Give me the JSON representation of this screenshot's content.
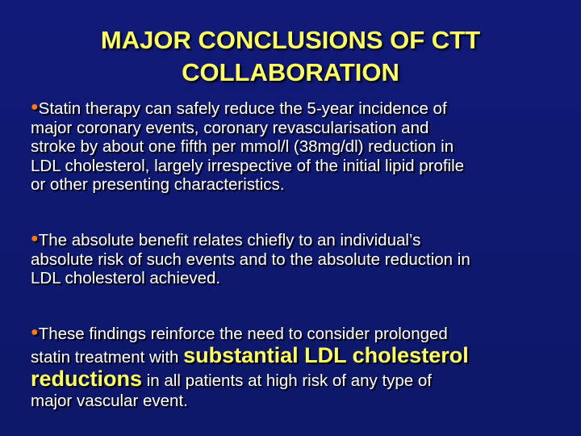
{
  "slide": {
    "title_lines": [
      "MAJOR CONCLUSIONS OF CTT",
      "COLLABORATION"
    ],
    "colors": {
      "background": "#101a78",
      "title": "#ffff66",
      "text": "#ffffff",
      "bullet": "#ff7a1a",
      "highlight": "#ffff66"
    },
    "bullet_icon": "orange-dot",
    "bullets": [
      {
        "lines": [
          "Statin therapy can safely reduce the 5-year incidence of",
          "major coronary events, coronary revascularisation and",
          "stroke by about one fifth per mmol/l (38mg/dl) reduction in",
          "LDL cholesterol, largely irrespective of the initial lipid profile",
          "or other presenting characteristics."
        ]
      },
      {
        "lines": [
          "The absolute benefit relates chiefly to an individual’s",
          "absolute risk of such events and to the absolute reduction in",
          "LDL cholesterol achieved."
        ]
      },
      {
        "lines": [
          "These findings reinforce the need to consider prolonged",
          "statin treatment with ",
          "in all patients at high risk of any type of",
          "major vascular event."
        ],
        "highlight_1": "substantial LDL cholesterol",
        "highlight_2": "reductions"
      }
    ]
  }
}
